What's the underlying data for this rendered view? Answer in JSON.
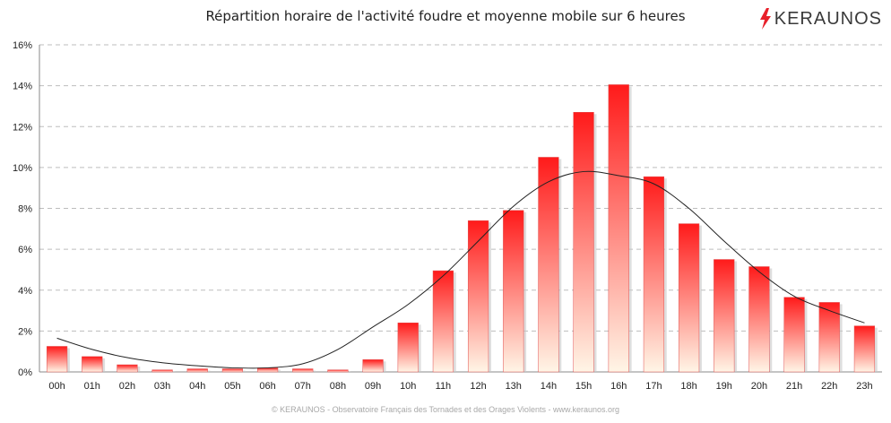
{
  "title": "Répartition horaire de l'activité foudre et moyenne mobile sur 6 heures",
  "logo": {
    "text": "KERAUNOS",
    "accent_color": "#e8202a"
  },
  "footer": "© KERAUNOS - Observatoire Français des Tornades et des Orages Violents - www.keraunos.org",
  "chart_data": {
    "type": "bar",
    "categories": [
      "00h",
      "01h",
      "02h",
      "03h",
      "04h",
      "05h",
      "06h",
      "07h",
      "08h",
      "09h",
      "10h",
      "11h",
      "12h",
      "13h",
      "14h",
      "15h",
      "16h",
      "17h",
      "18h",
      "19h",
      "20h",
      "21h",
      "22h",
      "23h"
    ],
    "values": [
      1.25,
      0.75,
      0.35,
      0.1,
      0.15,
      0.15,
      0.2,
      0.15,
      0.1,
      0.6,
      2.4,
      4.95,
      7.4,
      7.9,
      10.5,
      12.7,
      14.05,
      9.55,
      7.25,
      5.5,
      5.15,
      3.65,
      3.4,
      2.25
    ],
    "moving_average": {
      "type": "line",
      "x": [
        "00h",
        "01h",
        "02h",
        "03h",
        "04h",
        "05h",
        "06h",
        "07h",
        "08h",
        "09h",
        "10h",
        "11h",
        "12h",
        "13h",
        "14h",
        "15h",
        "16h",
        "17h",
        "18h",
        "19h",
        "20h",
        "21h",
        "22h",
        "23h"
      ],
      "values": [
        1.65,
        1.1,
        0.7,
        0.45,
        0.3,
        0.2,
        0.2,
        0.4,
        1.1,
        2.2,
        3.3,
        4.7,
        6.4,
        8.1,
        9.3,
        9.8,
        9.6,
        9.2,
        8.0,
        6.4,
        4.9,
        3.7,
        3.0,
        2.4
      ],
      "color": "#222222"
    },
    "ylim": [
      0,
      16
    ],
    "yticks": [
      "0%",
      "2%",
      "4%",
      "6%",
      "8%",
      "10%",
      "12%",
      "14%",
      "16%"
    ],
    "grid": true,
    "bar_color_top": "#ff1a1a",
    "bar_color_bottom": "#fff5e6"
  }
}
